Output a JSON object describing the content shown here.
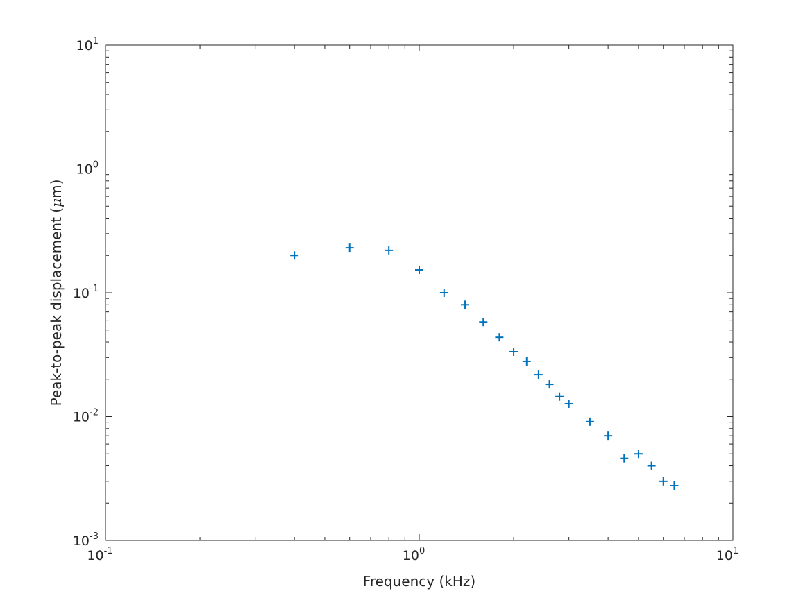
{
  "chart_data": {
    "type": "scatter",
    "title": "",
    "xlabel": "Frequency (kHz)",
    "ylabel_prefix": "Peak-to-peak displacement (",
    "ylabel_symbol": "μ",
    "ylabel_suffix": "m)",
    "xscale": "log",
    "yscale": "log",
    "xlim": [
      0.1,
      10
    ],
    "ylim": [
      0.001,
      10
    ],
    "grid": false,
    "box": true,
    "marker": "+",
    "marker_color": "#0072BD",
    "axis_color": "#262626",
    "xticks": [
      {
        "base": "10",
        "exp": "-1",
        "value": 0.1
      },
      {
        "base": "10",
        "exp": "0",
        "value": 1
      },
      {
        "base": "10",
        "exp": "1",
        "value": 10
      }
    ],
    "yticks": [
      {
        "base": "10",
        "exp": "-3",
        "value": 0.001
      },
      {
        "base": "10",
        "exp": "-2",
        "value": 0.01
      },
      {
        "base": "10",
        "exp": "-1",
        "value": 0.1
      },
      {
        "base": "10",
        "exp": "0",
        "value": 1
      },
      {
        "base": "10",
        "exp": "1",
        "value": 10
      }
    ],
    "x": [
      0.4,
      0.6,
      0.8,
      1.0,
      1.2,
      1.4,
      1.6,
      1.8,
      2.0,
      2.2,
      2.4,
      2.6,
      2.8,
      3.0,
      3.5,
      4.0,
      4.5,
      5.0,
      5.5,
      6.0,
      6.5
    ],
    "y": [
      0.2,
      0.231,
      0.22,
      0.153,
      0.1,
      0.08,
      0.058,
      0.0437,
      0.0334,
      0.0279,
      0.0218,
      0.0182,
      0.0145,
      0.0127,
      0.0091,
      0.007,
      0.0046,
      0.005,
      0.004,
      0.003,
      0.00277
    ]
  }
}
